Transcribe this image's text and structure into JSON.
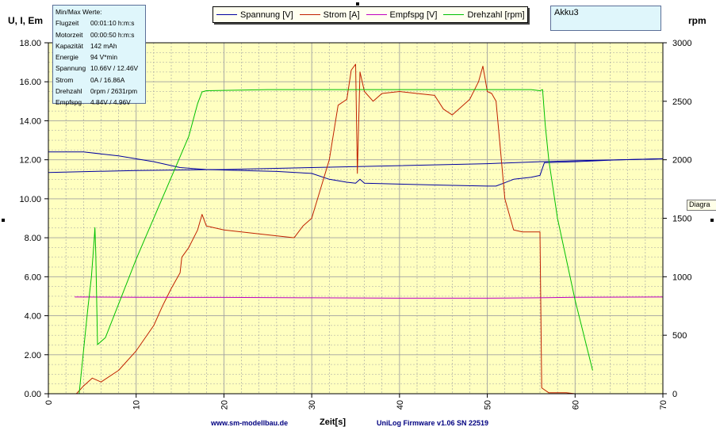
{
  "window": {
    "tab_label": "Diagra"
  },
  "minmax": {
    "title": "Min/Max Werte:",
    "rows": [
      {
        "k": "Flugzeit",
        "v": "00:01:10 h:m:s"
      },
      {
        "k": "Motorzeit",
        "v": "00:00:50 h:m:s"
      },
      {
        "k": "Kapazität",
        "v": "142 mAh"
      },
      {
        "k": "Energie",
        "v": "94 V*min"
      },
      {
        "k": "Spannung",
        "v": "10.66V / 12.46V"
      },
      {
        "k": "Strom",
        "v": "0A / 16.86A"
      },
      {
        "k": "Drehzahl",
        "v": "0rpm / 2631rpm"
      },
      {
        "k": "Empfspg",
        "v": "4.84V / 4.96V"
      }
    ]
  },
  "legend_items": [
    {
      "label": "Spannung [V]",
      "color": "#0000a0"
    },
    {
      "label": "Strom [A]",
      "color": "#c02000"
    },
    {
      "label": "Empfspg [V]",
      "color": "#c000c0"
    },
    {
      "label": "Drehzahl [rpm]",
      "color": "#00c000"
    }
  ],
  "akku_label": "Akku3",
  "footer": {
    "website": "www.sm-modellbau.de",
    "firmware": "UniLog Firmware v1.06 SN 22519"
  },
  "chart_data": {
    "type": "line",
    "xlabel": "Zeit[s]",
    "ylabel_left": "U, I, Em",
    "ylabel_right": "rpm",
    "xlim": [
      0,
      70
    ],
    "ylim_left": [
      0,
      18
    ],
    "ylim_right": [
      0,
      3000
    ],
    "x_ticks": [
      "0",
      "10",
      "20",
      "30",
      "40",
      "50",
      "60",
      "70"
    ],
    "y_ticks_left": [
      "0.00",
      "2.00",
      "4.00",
      "6.00",
      "8.00",
      "10.00",
      "12.00",
      "14.00",
      "16.00",
      "18.00"
    ],
    "y_ticks_right": [
      "0",
      "500",
      "1000",
      "1500",
      "2000",
      "2500",
      "3000"
    ],
    "grid": true,
    "colors": {
      "plot_bg": "#ffffc0",
      "grid": "#a0a0a0"
    },
    "series": [
      {
        "name": "Spannung [V]",
        "axis": "left",
        "color": "#0000a0",
        "x": [
          0,
          4,
          8,
          12,
          15,
          18,
          22,
          26,
          30,
          32,
          34,
          35,
          35.5,
          36,
          40,
          45,
          50,
          51,
          53,
          55,
          56,
          56.5,
          60,
          65,
          70
        ],
        "y": [
          12.4,
          12.4,
          12.2,
          11.9,
          11.6,
          11.5,
          11.45,
          11.4,
          11.3,
          11.0,
          10.85,
          10.8,
          11.0,
          10.8,
          10.75,
          10.7,
          10.65,
          10.65,
          11.0,
          11.1,
          11.2,
          11.85,
          11.9,
          12.0,
          12.05
        ]
      },
      {
        "name": "Spannung [V] 2",
        "axis": "left",
        "color": "#0000a0",
        "x": [
          0,
          10,
          20,
          30,
          40,
          50,
          56,
          60,
          65,
          70
        ],
        "y": [
          11.35,
          11.45,
          11.5,
          11.6,
          11.7,
          11.8,
          11.9,
          11.95,
          12.0,
          12.05
        ]
      },
      {
        "name": "Strom [A]",
        "axis": "left",
        "color": "#c02000",
        "x": [
          3.2,
          4,
          5,
          6,
          8,
          10,
          12,
          13,
          14,
          15,
          15.2,
          16,
          17,
          17.5,
          18,
          20,
          24,
          28,
          29,
          30,
          31,
          32,
          33,
          34,
          34.5,
          35,
          35.2,
          35.5,
          36,
          37,
          38,
          40,
          42,
          44,
          45,
          46,
          47,
          48,
          49,
          49.5,
          50,
          50.5,
          51,
          51.5,
          52,
          53,
          54,
          55,
          56,
          56.2,
          57,
          59,
          60
        ],
        "y": [
          0,
          0.4,
          0.8,
          0.6,
          1.2,
          2.2,
          3.5,
          4.5,
          5.4,
          6.2,
          7.0,
          7.5,
          8.4,
          9.2,
          8.6,
          8.4,
          8.2,
          8.0,
          8.6,
          9.0,
          10.5,
          12.0,
          14.8,
          15.1,
          16.6,
          16.9,
          11.3,
          16.5,
          15.5,
          15.0,
          15.4,
          15.5,
          15.4,
          15.3,
          14.6,
          14.3,
          14.7,
          15.1,
          16.0,
          16.8,
          15.5,
          15.4,
          15.0,
          12.5,
          10.0,
          8.4,
          8.3,
          8.3,
          8.3,
          0.3,
          0.05,
          0.05,
          0.0
        ]
      },
      {
        "name": "Empfspg [V]",
        "axis": "left",
        "color": "#c000c0",
        "x": [
          3,
          10,
          20,
          30,
          40,
          50,
          56,
          60,
          70
        ],
        "y": [
          4.96,
          4.95,
          4.94,
          4.92,
          4.9,
          4.9,
          4.92,
          4.95,
          4.96
        ]
      },
      {
        "name": "Drehzahl [rpm]",
        "axis": "right",
        "color": "#00c000",
        "x": [
          3.5,
          4.5,
          4.9,
          5.2,
          5.3,
          5.4,
          5.6,
          6.5,
          10,
          14,
          16,
          17,
          17.5,
          18,
          25,
          30,
          40,
          50,
          55,
          56,
          56.3,
          56.6,
          57,
          58,
          60,
          62
        ],
        "y": [
          0,
          730,
          1000,
          1300,
          1420,
          1200,
          420,
          480,
          1150,
          1850,
          2200,
          2480,
          2580,
          2590,
          2600,
          2600,
          2600,
          2600,
          2600,
          2590,
          2600,
          2300,
          2000,
          1500,
          800,
          200
        ]
      }
    ]
  }
}
